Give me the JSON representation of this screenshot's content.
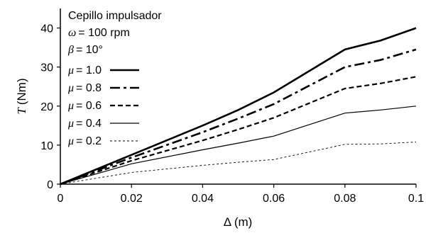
{
  "chart_data": {
    "type": "line",
    "title": "",
    "xlabel": "Δ (m)",
    "ylabel_symbol": "T",
    "ylabel_unit": "(Nm)",
    "xlim": [
      0,
      0.1
    ],
    "ylim": [
      0,
      45
    ],
    "x_ticks": [
      "0",
      "0.02",
      "0.04",
      "0.06",
      "0.08",
      "0.1"
    ],
    "y_ticks": [
      "0",
      "10",
      "20",
      "30",
      "40"
    ],
    "grid": false,
    "legend_position": "left",
    "annotation": {
      "line1": "Cepillo impulsador",
      "line2_symbol": "ω",
      "line2_value": "= 100 rpm",
      "line3_symbol": "β",
      "line3_value": "= 10°"
    },
    "x": [
      0,
      0.02,
      0.04,
      0.05,
      0.06,
      0.08,
      0.09,
      0.1
    ],
    "series": [
      {
        "name_symbol": "μ",
        "name_value": "= 1.0",
        "values": [
          0,
          7.5,
          15.0,
          19.0,
          23.5,
          34.5,
          36.8,
          40.0
        ]
      },
      {
        "name_symbol": "μ",
        "name_value": "= 0.8",
        "values": [
          0,
          6.8,
          13.3,
          16.8,
          20.5,
          30.0,
          31.8,
          34.5
        ]
      },
      {
        "name_symbol": "μ",
        "name_value": "= 0.6",
        "values": [
          0,
          6.0,
          11.2,
          14.0,
          17.0,
          24.5,
          25.8,
          27.5
        ]
      },
      {
        "name_symbol": "μ",
        "name_value": "= 0.4",
        "values": [
          0,
          5.2,
          8.8,
          10.5,
          12.3,
          18.2,
          19.0,
          20.0
        ]
      },
      {
        "name_symbol": "μ",
        "name_value": "= 0.2",
        "values": [
          0,
          3.0,
          4.8,
          5.6,
          6.3,
          10.2,
          10.3,
          10.8
        ]
      }
    ],
    "styles": {
      "color": "#000000",
      "widths": [
        2.6,
        2.6,
        2.2,
        1.2,
        0.9
      ],
      "dashes": [
        "",
        "14 5 4 5",
        "7 4",
        "",
        "3 3"
      ]
    }
  }
}
